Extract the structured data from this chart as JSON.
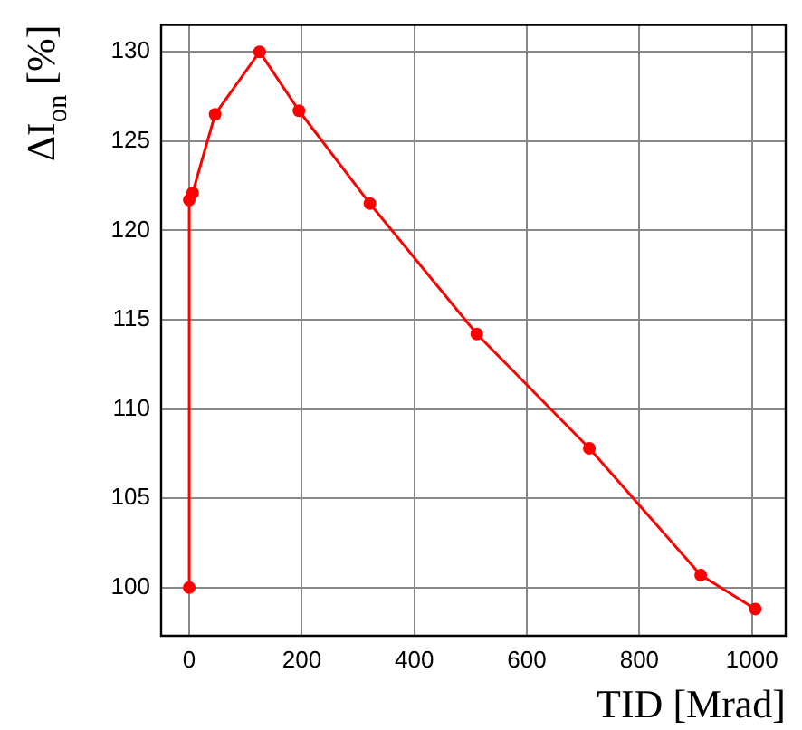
{
  "chart_data": {
    "type": "line",
    "xlabel": "TID [Mrad]",
    "ylabel": "ΔI$_{on}$ [%]",
    "x": [
      0,
      0,
      6,
      46,
      125,
      195,
      321,
      511,
      711,
      909,
      1006
    ],
    "series": [
      {
        "color": "#ff0000",
        "values": [
          100,
          121.7,
          122.1,
          126.5,
          130,
          126.7,
          121.5,
          114.2,
          107.8,
          100.7,
          98.8
        ]
      }
    ],
    "xlim": [
      -50,
      1060
    ],
    "xticks": [
      0,
      200,
      400,
      600,
      800,
      1000
    ],
    "ylim": [
      97.3,
      131.5
    ],
    "yticks": [
      100,
      105,
      110,
      115,
      120,
      125,
      130
    ],
    "grid": true,
    "marker": "circle",
    "line_style": "solid",
    "legend": false
  }
}
